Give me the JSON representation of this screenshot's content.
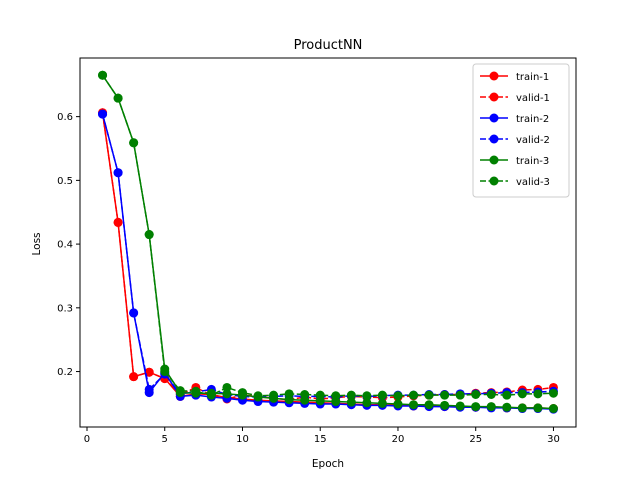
{
  "chart_data": {
    "type": "line",
    "title": "ProductNN",
    "xlabel": "Epoch",
    "ylabel": "Loss",
    "xlim": [
      -0.45,
      31.45
    ],
    "ylim": [
      0.113,
      0.692
    ],
    "xticks": [
      0,
      5,
      10,
      15,
      20,
      25,
      30
    ],
    "yticks": [
      0.2,
      0.3,
      0.4,
      0.5,
      0.6
    ],
    "ytick_labels": [
      "0.2",
      "0.3",
      "0.4",
      "0.5",
      "0.6"
    ],
    "grid": false,
    "legend_position": "top-right",
    "x": [
      1,
      2,
      3,
      4,
      5,
      6,
      7,
      8,
      9,
      10,
      11,
      12,
      13,
      14,
      15,
      16,
      17,
      18,
      19,
      20,
      21,
      22,
      23,
      24,
      25,
      26,
      27,
      28,
      29,
      30
    ],
    "series": [
      {
        "name": "train-1",
        "color": "#ff0000",
        "dashed": false,
        "values": [
          0.606,
          0.434,
          0.192,
          0.199,
          0.189,
          0.161,
          0.165,
          0.164,
          0.159,
          0.157,
          0.155,
          0.154,
          0.153,
          0.152,
          0.151,
          0.15,
          0.149,
          0.148,
          0.148,
          0.147,
          0.146,
          0.146,
          0.145,
          0.145,
          0.144,
          0.144,
          0.143,
          0.143,
          0.143,
          0.142
        ]
      },
      {
        "name": "valid-1",
        "color": "#ff0000",
        "dashed": true,
        "values": [
          0.606,
          0.434,
          0.192,
          0.199,
          0.189,
          0.164,
          0.175,
          0.163,
          0.157,
          0.163,
          0.161,
          0.158,
          0.156,
          0.16,
          0.157,
          0.159,
          0.161,
          0.16,
          0.159,
          0.16,
          0.162,
          0.163,
          0.164,
          0.164,
          0.166,
          0.167,
          0.168,
          0.171,
          0.172,
          0.175
        ]
      },
      {
        "name": "train-2",
        "color": "#0000ff",
        "dashed": false,
        "values": [
          0.604,
          0.512,
          0.292,
          0.167,
          0.198,
          0.161,
          0.163,
          0.16,
          0.158,
          0.155,
          0.153,
          0.152,
          0.151,
          0.15,
          0.149,
          0.149,
          0.148,
          0.147,
          0.147,
          0.146,
          0.146,
          0.145,
          0.145,
          0.144,
          0.144,
          0.143,
          0.143,
          0.142,
          0.142,
          0.141
        ]
      },
      {
        "name": "valid-2",
        "color": "#0000ff",
        "dashed": true,
        "values": [
          0.604,
          0.512,
          0.292,
          0.172,
          0.196,
          0.165,
          0.168,
          0.172,
          0.164,
          0.161,
          0.16,
          0.161,
          0.162,
          0.161,
          0.161,
          0.16,
          0.162,
          0.161,
          0.162,
          0.163,
          0.163,
          0.164,
          0.164,
          0.165,
          0.165,
          0.166,
          0.167,
          0.167,
          0.168,
          0.169
        ]
      },
      {
        "name": "train-3",
        "color": "#008000",
        "dashed": false,
        "values": [
          0.665,
          0.629,
          0.559,
          0.415,
          0.204,
          0.167,
          0.166,
          0.166,
          0.165,
          0.163,
          0.16,
          0.158,
          0.156,
          0.155,
          0.154,
          0.153,
          0.152,
          0.151,
          0.15,
          0.149,
          0.148,
          0.148,
          0.147,
          0.146,
          0.145,
          0.145,
          0.144,
          0.143,
          0.143,
          0.142
        ]
      },
      {
        "name": "valid-3",
        "color": "#008000",
        "dashed": true,
        "values": [
          0.665,
          0.629,
          0.559,
          0.415,
          0.2,
          0.17,
          0.169,
          0.163,
          0.175,
          0.167,
          0.162,
          0.163,
          0.165,
          0.164,
          0.163,
          0.162,
          0.163,
          0.162,
          0.163,
          0.162,
          0.163,
          0.163,
          0.163,
          0.163,
          0.164,
          0.164,
          0.163,
          0.165,
          0.165,
          0.166
        ]
      }
    ]
  }
}
